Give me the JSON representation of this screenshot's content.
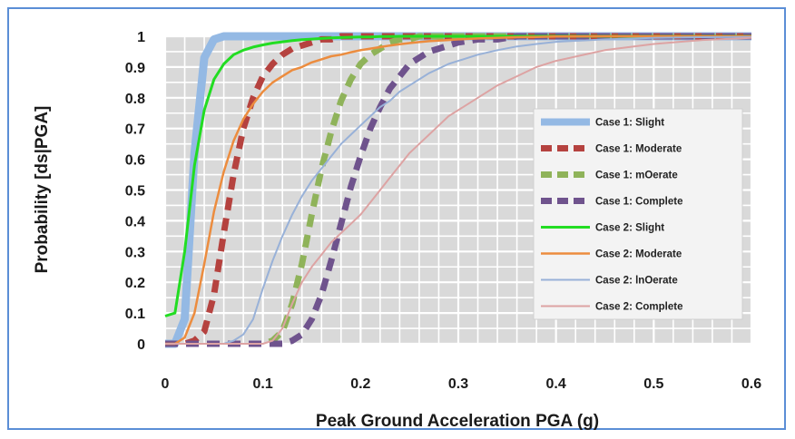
{
  "chart_data": {
    "type": "line",
    "title": "",
    "xlabel": "Peak Ground Acceleration PGA (g)",
    "ylabel": "Probability [ds|PGA]",
    "xlim": [
      0,
      0.6
    ],
    "ylim": [
      0,
      1
    ],
    "x_ticks": [
      "0",
      "0.1",
      "0.2",
      "0.3",
      "0.4",
      "0.5",
      "0.6"
    ],
    "y_ticks": [
      "0",
      "0.1",
      "0.2",
      "0.3",
      "0.4",
      "0.5",
      "0.6",
      "0.7",
      "0.8",
      "0.9",
      "1"
    ],
    "grid": true,
    "minor_grid": true,
    "legend_position": "right",
    "x": [
      0,
      0.01,
      0.02,
      0.03,
      0.04,
      0.05,
      0.06,
      0.07,
      0.08,
      0.09,
      0.1,
      0.11,
      0.12,
      0.13,
      0.14,
      0.15,
      0.16,
      0.17,
      0.18,
      0.19,
      0.2,
      0.21,
      0.22,
      0.23,
      0.24,
      0.25,
      0.26,
      0.27,
      0.28,
      0.29,
      0.3,
      0.32,
      0.34,
      0.36,
      0.38,
      0.4,
      0.45,
      0.5,
      0.55,
      0.6
    ],
    "series": [
      {
        "name": "Case 1: Slight",
        "color": "#94b9e4",
        "width": 9,
        "dash": "",
        "values": [
          0,
          0,
          0.08,
          0.62,
          0.93,
          0.99,
          1,
          1,
          1,
          1,
          1,
          1,
          1,
          1,
          1,
          1,
          1,
          1,
          1,
          1,
          1,
          1,
          1,
          1,
          1,
          1,
          1,
          1,
          1,
          1,
          1,
          1,
          1,
          1,
          1,
          1,
          1,
          1,
          1,
          1
        ]
      },
      {
        "name": "Case 1: Moderate",
        "color": "#b5423f",
        "width": 7,
        "dash": "14 9",
        "values": [
          0,
          0,
          0,
          0.01,
          0.04,
          0.16,
          0.36,
          0.55,
          0.7,
          0.8,
          0.87,
          0.91,
          0.94,
          0.96,
          0.97,
          0.98,
          0.99,
          0.99,
          1,
          1,
          1,
          1,
          1,
          1,
          1,
          1,
          1,
          1,
          1,
          1,
          1,
          1,
          1,
          1,
          1,
          1,
          1,
          1,
          1,
          1
        ]
      },
      {
        "name": "Case 1: mOerate",
        "color": "#8fb35a",
        "width": 7,
        "dash": "14 9",
        "values": [
          0,
          0,
          0,
          0,
          0,
          0,
          0,
          0,
          0,
          0,
          0,
          0.01,
          0.04,
          0.13,
          0.26,
          0.42,
          0.57,
          0.69,
          0.79,
          0.86,
          0.91,
          0.94,
          0.96,
          0.98,
          0.99,
          0.99,
          1,
          1,
          1,
          1,
          1,
          1,
          1,
          1,
          1,
          1,
          1,
          1,
          1,
          1
        ]
      },
      {
        "name": "Case 1: Complete",
        "color": "#6f538d",
        "width": 7,
        "dash": "14 9",
        "values": [
          0,
          0,
          0,
          0,
          0,
          0,
          0,
          0,
          0,
          0,
          0,
          0,
          0,
          0.01,
          0.03,
          0.08,
          0.16,
          0.27,
          0.39,
          0.51,
          0.61,
          0.7,
          0.77,
          0.83,
          0.87,
          0.91,
          0.93,
          0.95,
          0.96,
          0.97,
          0.98,
          0.99,
          0.99,
          1,
          1,
          1,
          1,
          1,
          1,
          1
        ]
      },
      {
        "name": "Case 2: Slight",
        "color": "#22dd22",
        "width": 3,
        "dash": "",
        "values": [
          0.09,
          0.1,
          0.3,
          0.58,
          0.76,
          0.86,
          0.91,
          0.94,
          0.955,
          0.965,
          0.972,
          0.978,
          0.982,
          0.986,
          0.989,
          0.991,
          0.993,
          0.995,
          0.996,
          0.997,
          0.998,
          0.998,
          0.999,
          0.999,
          1,
          1,
          1,
          1,
          1,
          1,
          1,
          1,
          1,
          1,
          1,
          1,
          1,
          1,
          1,
          1
        ]
      },
      {
        "name": "Case 2: Moderate",
        "color": "#ec8c3e",
        "width": 2.5,
        "dash": "",
        "values": [
          0,
          0,
          0.02,
          0.1,
          0.26,
          0.43,
          0.56,
          0.66,
          0.73,
          0.78,
          0.82,
          0.85,
          0.87,
          0.89,
          0.9,
          0.915,
          0.925,
          0.935,
          0.94,
          0.948,
          0.955,
          0.96,
          0.965,
          0.97,
          0.974,
          0.978,
          0.981,
          0.984,
          0.986,
          0.988,
          0.99,
          0.993,
          0.995,
          0.997,
          0.998,
          0.999,
          1,
          1,
          1,
          1
        ]
      },
      {
        "name": "Case 2: lnOerate",
        "color": "#98b1d8",
        "width": 2,
        "dash": "",
        "values": [
          0,
          0,
          0,
          0,
          0,
          0,
          0,
          0.01,
          0.03,
          0.08,
          0.18,
          0.27,
          0.35,
          0.42,
          0.48,
          0.53,
          0.57,
          0.61,
          0.65,
          0.68,
          0.71,
          0.74,
          0.77,
          0.79,
          0.82,
          0.84,
          0.86,
          0.88,
          0.895,
          0.91,
          0.92,
          0.94,
          0.955,
          0.967,
          0.975,
          0.982,
          0.99,
          0.995,
          0.997,
          0.998
        ]
      },
      {
        "name": "Case 2: Complete",
        "color": "#dda3a3",
        "width": 2,
        "dash": "",
        "values": [
          0,
          0,
          0,
          0,
          0,
          0,
          0,
          0,
          0,
          0,
          0,
          0.01,
          0.05,
          0.13,
          0.2,
          0.25,
          0.29,
          0.33,
          0.36,
          0.39,
          0.42,
          0.46,
          0.5,
          0.54,
          0.58,
          0.62,
          0.65,
          0.68,
          0.71,
          0.74,
          0.76,
          0.8,
          0.84,
          0.87,
          0.9,
          0.92,
          0.955,
          0.975,
          0.988,
          0.995
        ]
      }
    ]
  }
}
